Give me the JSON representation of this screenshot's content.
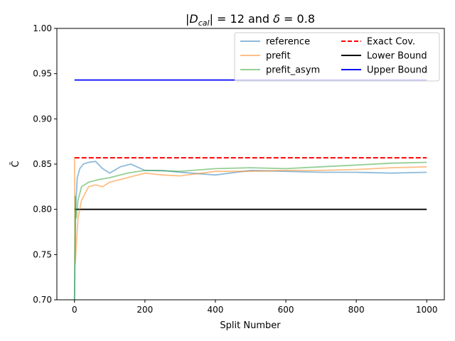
{
  "chart_data": {
    "type": "line",
    "title": "|D_cal| = 12 and δ = 0.8",
    "title_parts": {
      "pre": "|",
      "D": "D",
      "sub": "cal",
      "post": "| = 12 and ",
      "delta": "δ",
      "end": " = 0.8"
    },
    "xlabel": "Split Number",
    "ylabel": "C̄",
    "xlim": [
      -50,
      1050
    ],
    "ylim": [
      0.7,
      1.0
    ],
    "xticks": [
      0,
      200,
      400,
      600,
      800,
      1000
    ],
    "yticks": [
      0.7,
      0.75,
      0.8,
      0.85,
      0.9,
      0.95,
      1.0
    ],
    "ytick_labels": [
      "0.70",
      "0.75",
      "0.80",
      "0.85",
      "0.90",
      "0.95",
      "1.00"
    ],
    "legend_placement": "upper right",
    "series": [
      {
        "name": "reference",
        "color": "#1f77b4",
        "alpha": 0.5,
        "style": "solid",
        "x": [
          0,
          3,
          8,
          15,
          25,
          40,
          60,
          80,
          100,
          130,
          160,
          200,
          250,
          300,
          400,
          500,
          600,
          700,
          800,
          900,
          1000
        ],
        "y": [
          0.7,
          0.8,
          0.835,
          0.845,
          0.85,
          0.852,
          0.853,
          0.845,
          0.84,
          0.847,
          0.85,
          0.843,
          0.843,
          0.841,
          0.838,
          0.843,
          0.842,
          0.841,
          0.841,
          0.84,
          0.841
        ]
      },
      {
        "name": "prefit",
        "color": "#ff7f0e",
        "alpha": 0.5,
        "style": "solid",
        "x": [
          0,
          2,
          5,
          10,
          20,
          40,
          60,
          80,
          100,
          150,
          200,
          250,
          300,
          400,
          500,
          600,
          700,
          800,
          900,
          1000
        ],
        "y": [
          0.857,
          0.74,
          0.76,
          0.79,
          0.81,
          0.825,
          0.827,
          0.825,
          0.83,
          0.835,
          0.84,
          0.838,
          0.837,
          0.842,
          0.842,
          0.843,
          0.843,
          0.844,
          0.846,
          0.847
        ]
      },
      {
        "name": "prefit_asym",
        "color": "#2ca02c",
        "alpha": 0.5,
        "style": "solid",
        "x": [
          0,
          2,
          5,
          10,
          20,
          40,
          70,
          100,
          150,
          200,
          300,
          400,
          500,
          600,
          700,
          800,
          900,
          1000
        ],
        "y": [
          0.7,
          0.815,
          0.79,
          0.81,
          0.825,
          0.83,
          0.833,
          0.835,
          0.84,
          0.843,
          0.842,
          0.845,
          0.846,
          0.845,
          0.847,
          0.849,
          0.851,
          0.852
        ]
      },
      {
        "name": "Exact Cov.",
        "color": "#ff0000",
        "alpha": 1,
        "style": "dashed",
        "x": [
          0,
          1000
        ],
        "y": [
          0.857,
          0.857
        ]
      },
      {
        "name": "Lower Bound",
        "color": "#000000",
        "alpha": 1,
        "style": "solid",
        "x": [
          0,
          1000
        ],
        "y": [
          0.8,
          0.8
        ]
      },
      {
        "name": "Upper Bound",
        "color": "#0000ff",
        "alpha": 1,
        "style": "solid",
        "x": [
          0,
          1000
        ],
        "y": [
          0.943,
          0.943
        ]
      }
    ]
  }
}
